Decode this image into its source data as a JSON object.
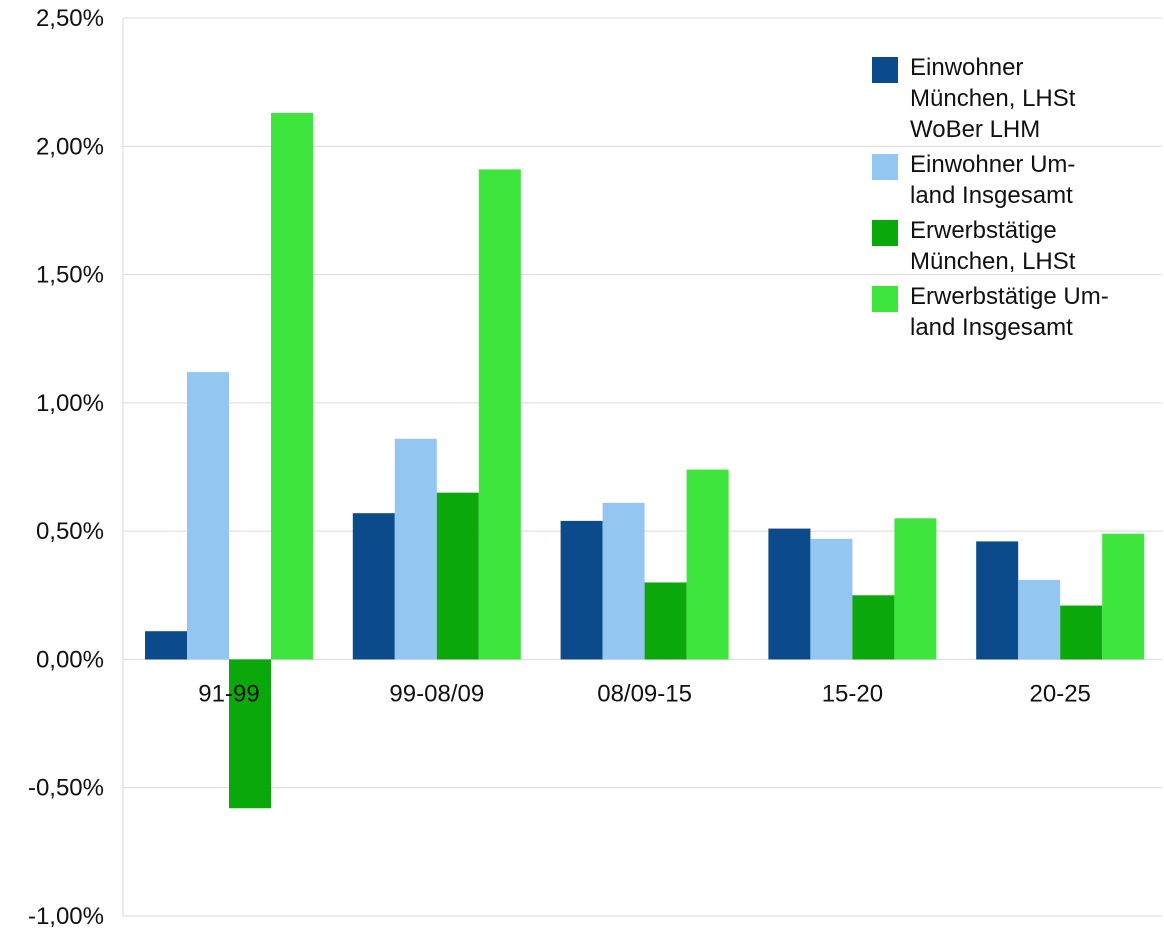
{
  "chart_data": {
    "type": "bar",
    "categories": [
      "91-99",
      "99-08/09",
      "08/09-15",
      "15-20",
      "20-25"
    ],
    "series": [
      {
        "name": "Einwohner\nMünchen, LHSt\nWoBer LHM",
        "color": "#0b4a8b",
        "values": [
          0.11,
          0.57,
          0.54,
          0.51,
          0.46
        ]
      },
      {
        "name": "Einwohner Um-\nland Insgesamt",
        "color": "#93c7f2",
        "values": [
          1.12,
          0.86,
          0.61,
          0.47,
          0.31
        ]
      },
      {
        "name": "Erwerbstätige\nMünchen, LHSt",
        "color": "#0aa80a",
        "values": [
          -0.58,
          0.65,
          0.3,
          0.25,
          0.21
        ]
      },
      {
        "name": "Erwerbstätige Um-\nland Insgesamt",
        "color": "#3de53d",
        "values": [
          2.13,
          1.91,
          0.74,
          0.55,
          0.49
        ]
      }
    ],
    "yticks": [
      "2,50%",
      "2,00%",
      "1,50%",
      "1,00%",
      "0,50%",
      "0,00%",
      "-0,50%",
      "-1,00%"
    ],
    "ylim": [
      -1.0,
      2.5
    ],
    "title": "",
    "xlabel": "",
    "ylabel": "",
    "grid": true,
    "legend_position": "top-right"
  }
}
